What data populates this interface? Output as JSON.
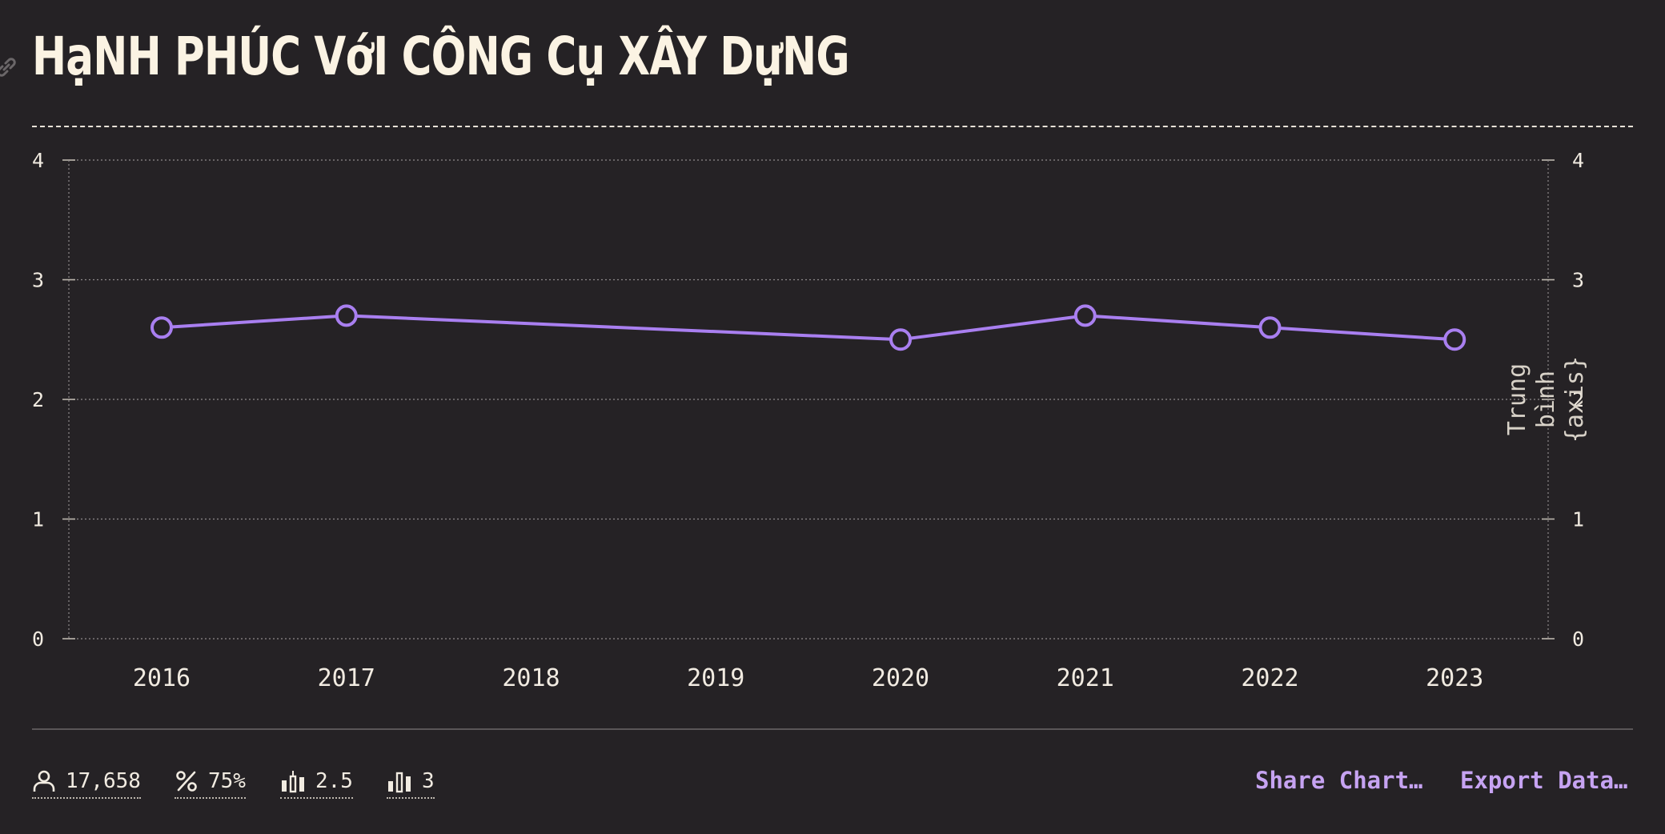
{
  "title": "HạNH PHÚC VớI CÔNG Cụ XÂY DựNG",
  "stats": {
    "respondents": "17,658",
    "percent": "75%",
    "average": "2.5",
    "median": "3"
  },
  "actions": {
    "share": "Share Chart…",
    "export": "Export Data…"
  },
  "colors": {
    "background": "#252225",
    "line": "#a97ff0",
    "accent_text": "#c6a3f2",
    "title": "#fbf3e3"
  },
  "icons": {
    "title_link": "link-icon",
    "respondents": "person-icon",
    "percent": "percent-icon",
    "average": "candlestick-chart-icon",
    "median": "bar-chart-icon"
  },
  "chart_data": {
    "type": "line",
    "title": "",
    "xlabel": "",
    "ylabel": "",
    "y2label": "Trung bình {axis}",
    "categories": [
      "2016",
      "2017",
      "2018",
      "2019",
      "2020",
      "2021",
      "2022",
      "2023"
    ],
    "series": [
      {
        "values": [
          2.6,
          2.7,
          null,
          null,
          2.5,
          2.7,
          2.6,
          2.5
        ]
      }
    ],
    "ylim": [
      0,
      4
    ],
    "yticks": [
      "0",
      "1",
      "2",
      "3",
      "4"
    ],
    "grid": true,
    "legend": "none"
  }
}
